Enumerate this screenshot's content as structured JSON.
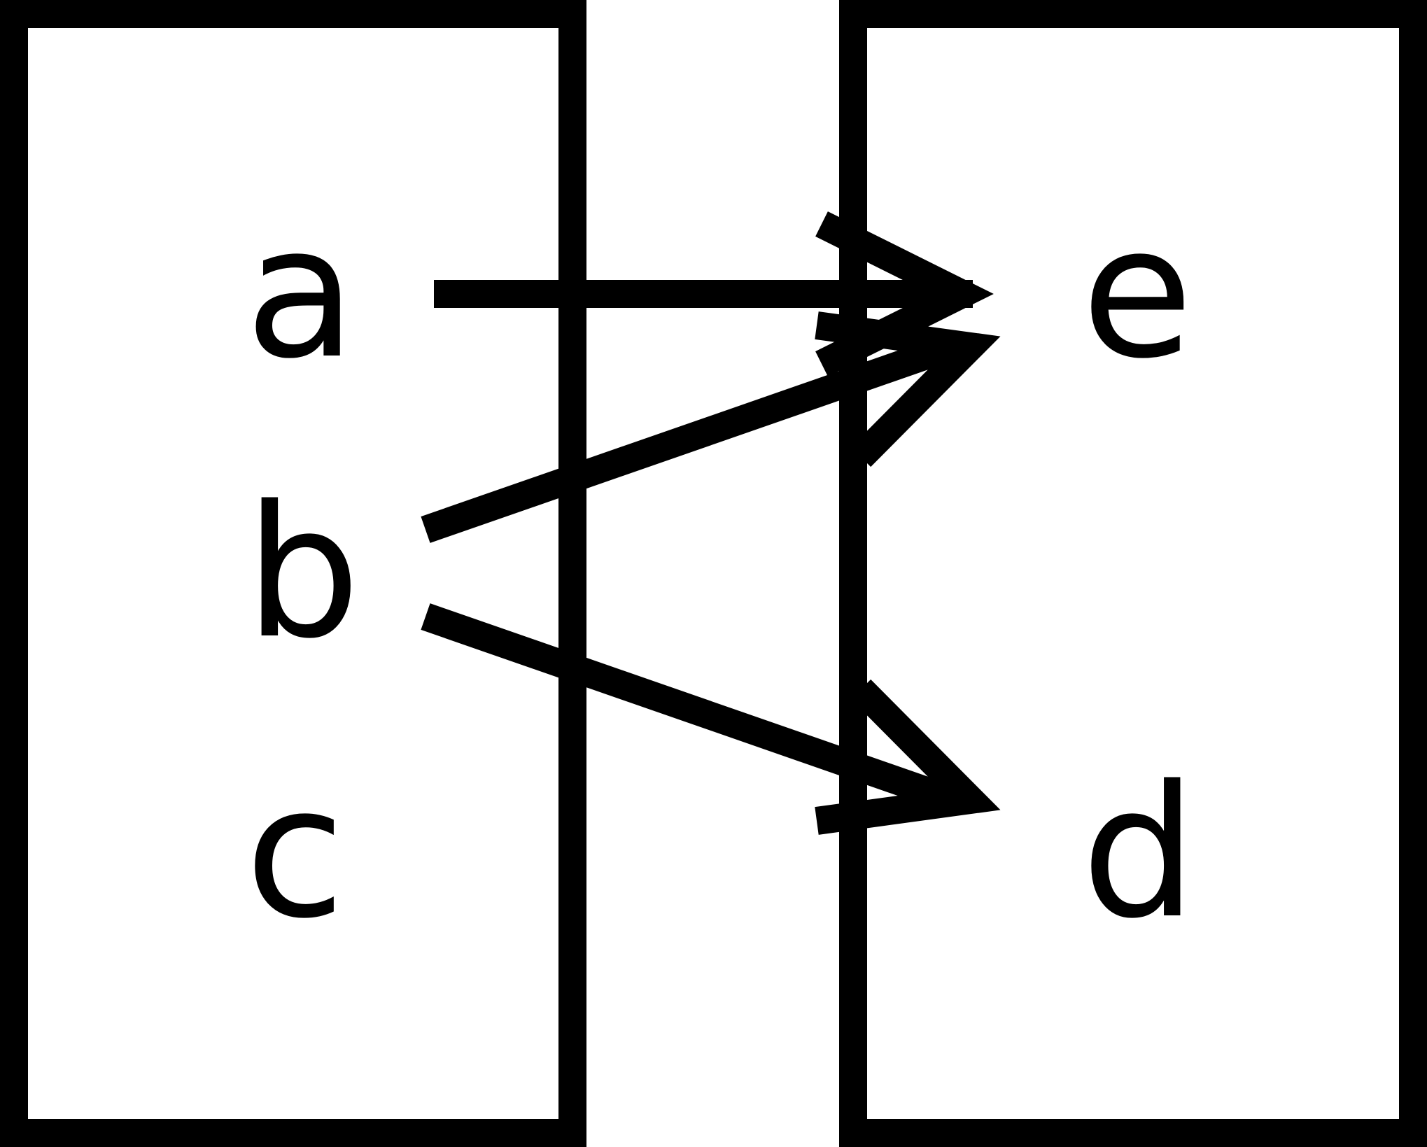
{
  "diagram": {
    "type": "mapping",
    "domain_set": {
      "elements": [
        "a",
        "b",
        "c"
      ]
    },
    "codomain_set": {
      "elements": [
        "e",
        "d"
      ]
    },
    "mappings": [
      {
        "from": "a",
        "to": "e"
      },
      {
        "from": "b",
        "to": "e"
      },
      {
        "from": "b",
        "to": "d"
      }
    ],
    "colors": {
      "stroke": "#000000",
      "background": "#ffffff"
    }
  }
}
